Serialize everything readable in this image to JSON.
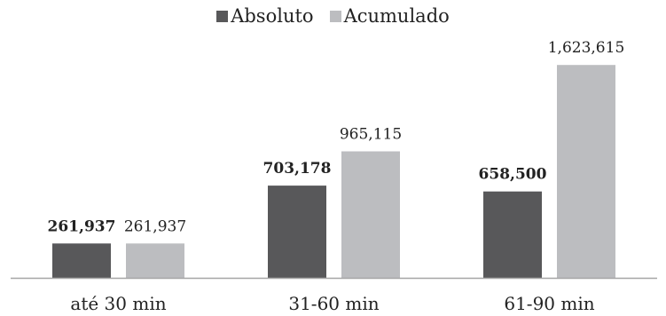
{
  "chart_data": {
    "type": "bar",
    "categories": [
      "até 30 min",
      "31-60 min",
      "61-90 min"
    ],
    "series": [
      {
        "name": "Absoluto",
        "color": "#58585a",
        "values": [
          261937,
          703178,
          658500
        ],
        "labels": [
          "261,937",
          "703,178",
          "658,500"
        ],
        "label_bold": true
      },
      {
        "name": "Acumulado",
        "color": "#bcbdc0",
        "values": [
          261937,
          965115,
          1623615
        ],
        "labels": [
          "261,937",
          "965,115",
          "1,623,615"
        ],
        "label_bold": false
      }
    ],
    "ylim": [
      0,
      1950000
    ],
    "grid": false,
    "legend_position": "top-center",
    "axis_color": "#a6a6a6",
    "text_color": "#222222"
  }
}
